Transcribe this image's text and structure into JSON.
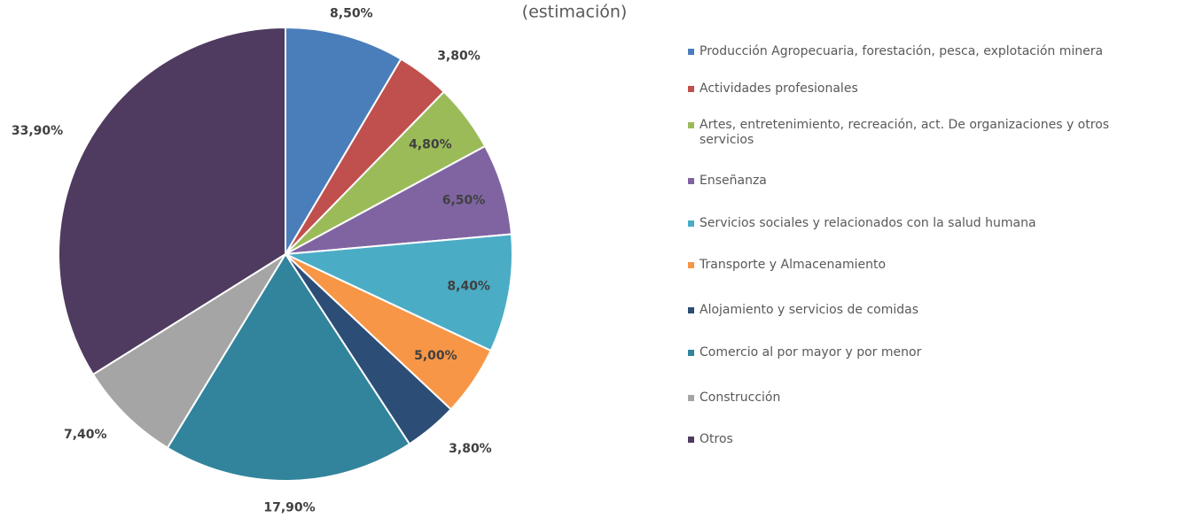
{
  "chart_data": {
    "type": "pie",
    "subtitle": "(estimación)",
    "categories": [
      "Producción Agropecuaria, forestación, pesca, explotación minera",
      "Actividades profesionales",
      "Artes, entretenimiento, recreación, act. De organizaciones y otros servicios",
      "Enseñanza",
      "Servicios sociales y relacionados con la salud humana",
      "Transporte y Almacenamiento",
      "Alojamiento y servicios de comidas",
      "Comercio al por mayor y por menor",
      "Construcción",
      "Otros"
    ],
    "values": [
      8.5,
      3.8,
      4.8,
      6.5,
      8.4,
      5.0,
      3.8,
      17.9,
      7.4,
      33.9
    ],
    "value_labels": [
      "8,50%",
      "3,80%",
      "4,80%",
      "6,50%",
      "8,40%",
      "5,00%",
      "3,80%",
      "17,90%",
      "7,40%",
      "33,90%"
    ],
    "colors": [
      "#4a7ebb",
      "#c0504d",
      "#9bbb59",
      "#8064a2",
      "#4bacc6",
      "#f79646",
      "#2c4d75",
      "#31849b",
      "#a5a5a5",
      "#4f3b5f"
    ],
    "legend": "right"
  }
}
